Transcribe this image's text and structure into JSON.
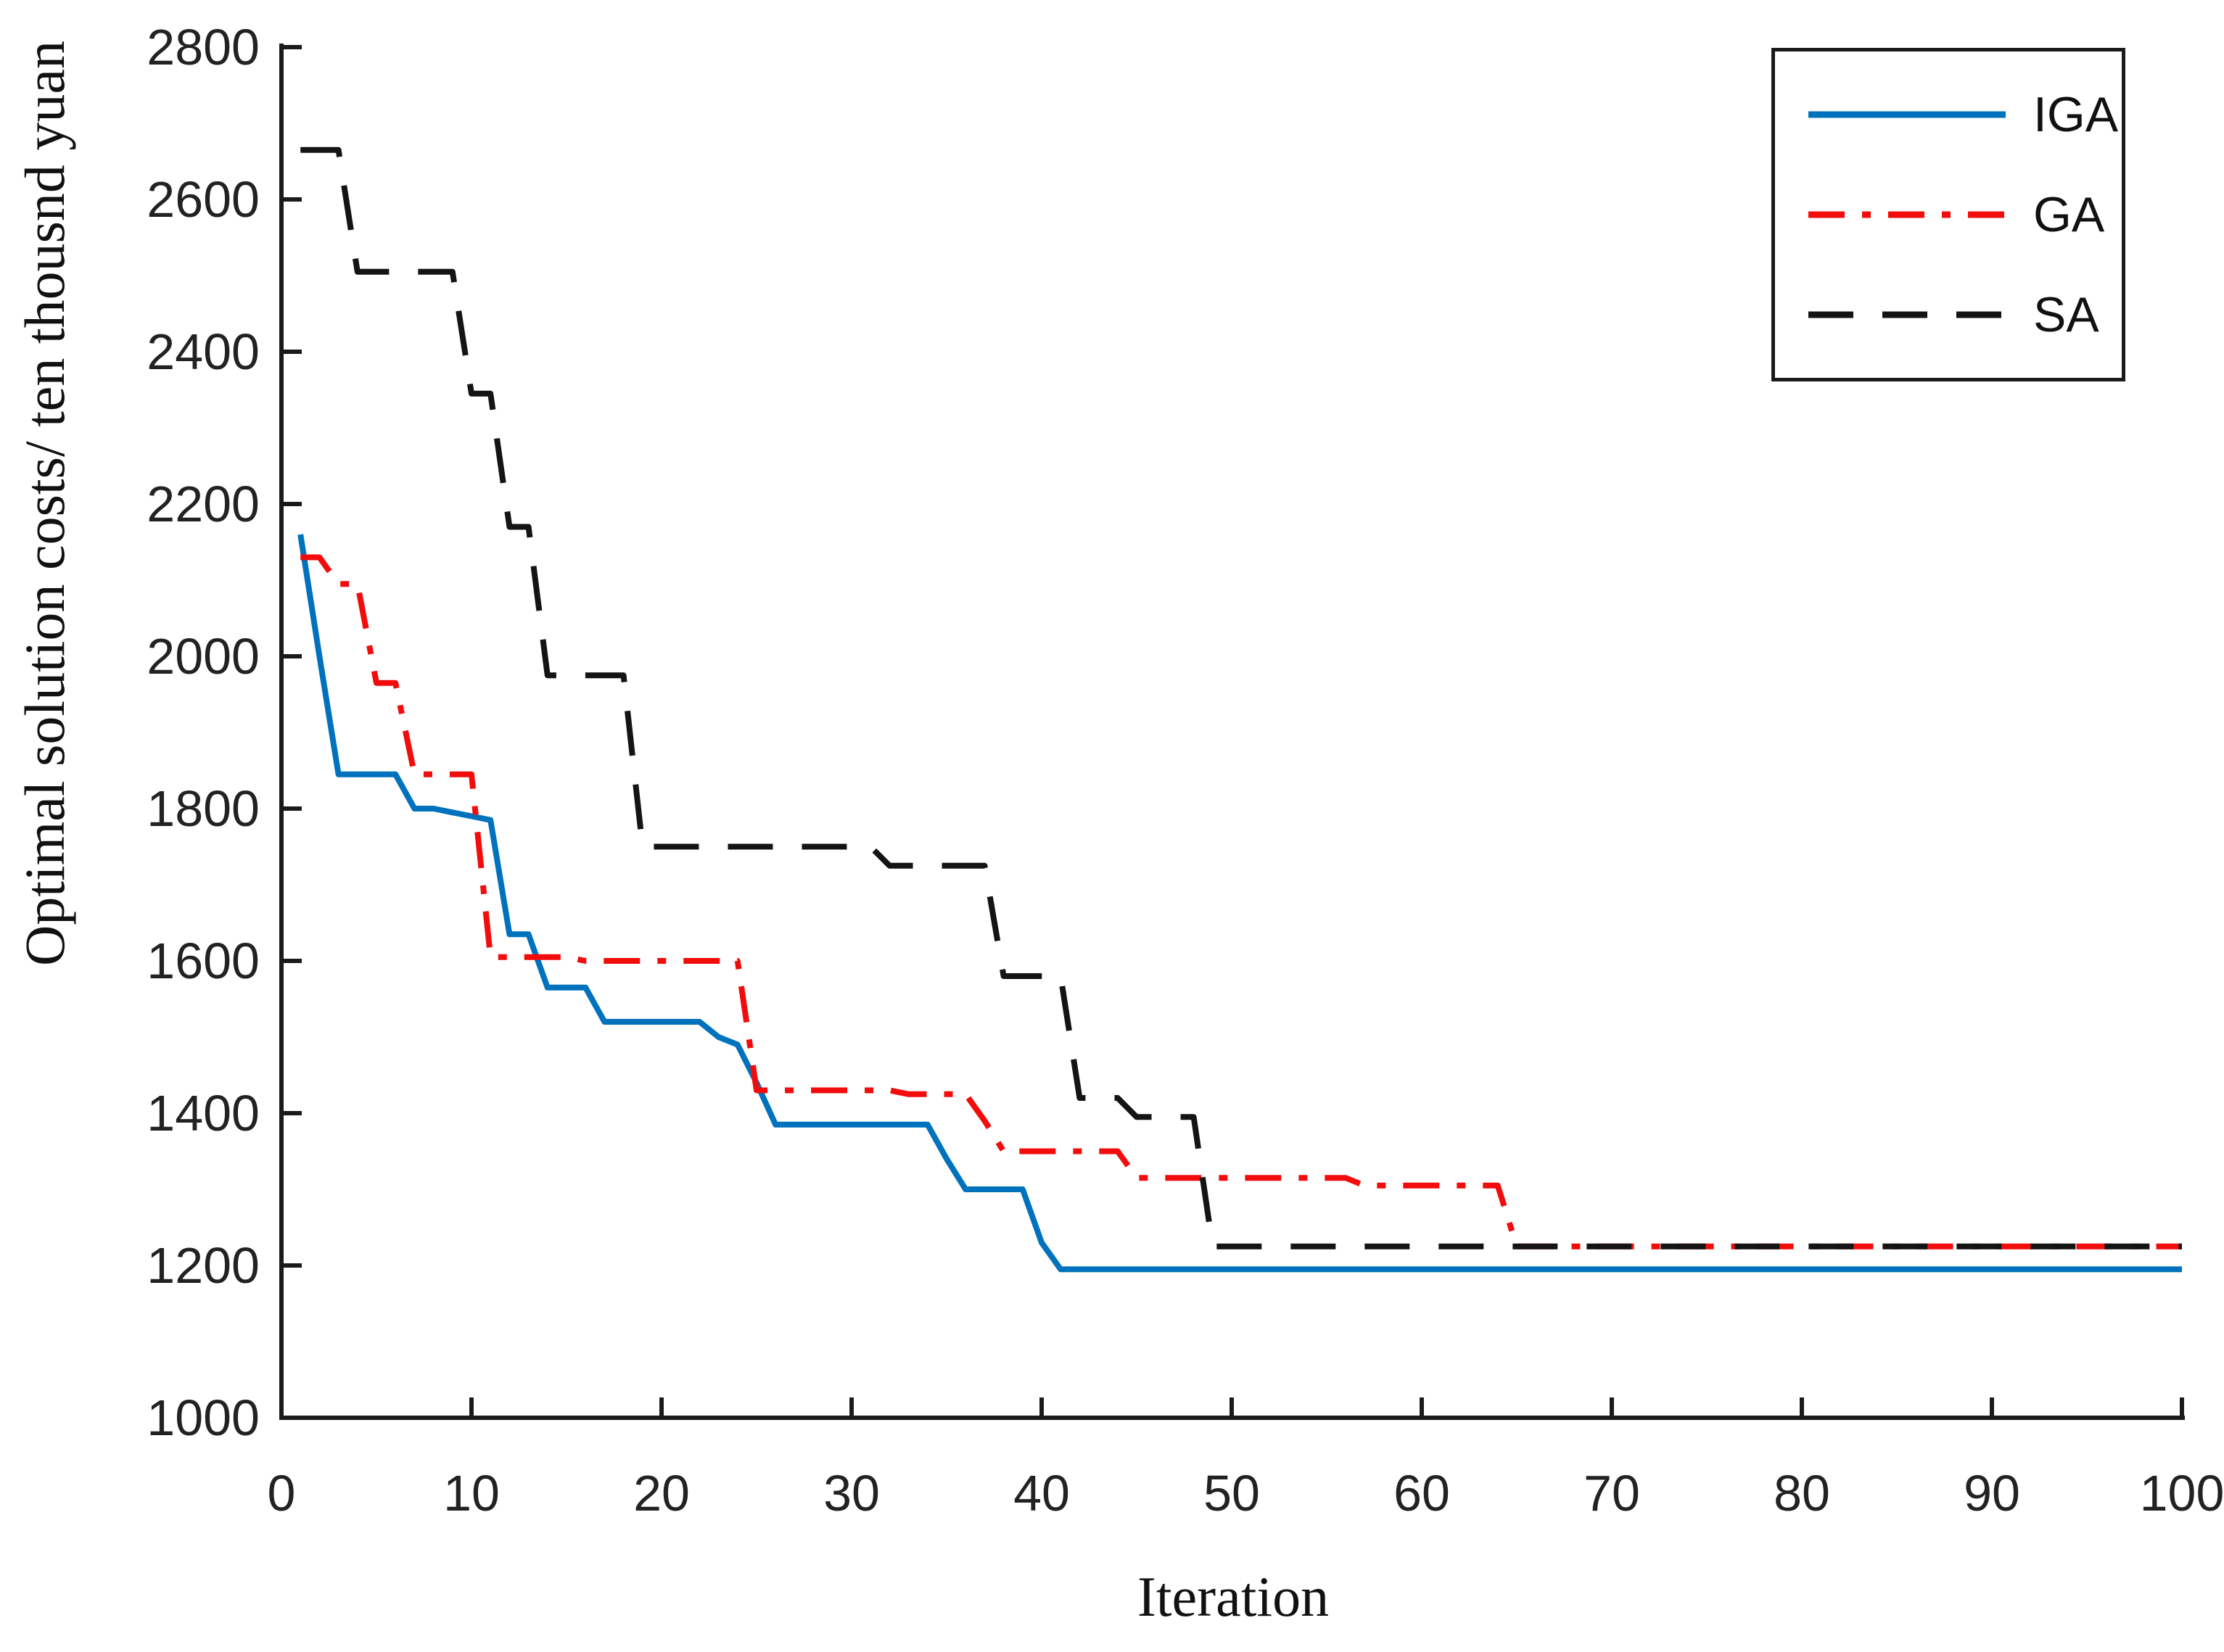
{
  "figure": {
    "background": "#ffffff"
  },
  "chart_data": {
    "type": "line",
    "title": "",
    "xlabel": "Iteration",
    "ylabel": "Optimal solution costs/ ten thousnd yuan",
    "xlim": [
      0,
      100
    ],
    "ylim": [
      1000,
      2800
    ],
    "x_ticks": [
      0,
      10,
      20,
      30,
      40,
      50,
      60,
      70,
      80,
      90,
      100
    ],
    "y_ticks": [
      1000,
      1200,
      1400,
      1600,
      1800,
      2000,
      2200,
      2400,
      2600,
      2800
    ],
    "grid": false,
    "legend_position": "top-right",
    "x_note": "iteration index 1..100, one value per iteration",
    "axis_color": "#1a1a1a",
    "tick_label_color": "#222222",
    "series": [
      {
        "name": "IGA",
        "color": "#0072bd",
        "line_style": "solid",
        "values": [
          2160,
          2000,
          1845,
          1845,
          1845,
          1845,
          1800,
          1800,
          1795,
          1790,
          1785,
          1635,
          1635,
          1565,
          1565,
          1565,
          1520,
          1520,
          1520,
          1520,
          1520,
          1520,
          1500,
          1490,
          1440,
          1385,
          1385,
          1385,
          1385,
          1385,
          1385,
          1385,
          1385,
          1385,
          1340,
          1300,
          1300,
          1300,
          1300,
          1230,
          1195,
          1195,
          1195,
          1195,
          1195,
          1195,
          1195,
          1195,
          1195,
          1195,
          1195,
          1195,
          1195,
          1195,
          1195,
          1195,
          1195,
          1195,
          1195,
          1195,
          1195,
          1195,
          1195,
          1195,
          1195,
          1195,
          1195,
          1195,
          1195,
          1195,
          1195,
          1195,
          1195,
          1195,
          1195,
          1195,
          1195,
          1195,
          1195,
          1195,
          1195,
          1195,
          1195,
          1195,
          1195,
          1195,
          1195,
          1195,
          1195,
          1195,
          1195,
          1195,
          1195,
          1195,
          1195,
          1195,
          1195,
          1195,
          1195,
          1195
        ]
      },
      {
        "name": "GA",
        "color": "#f20c0c",
        "line_style": "dash-dot",
        "values": [
          2130,
          2130,
          2095,
          2095,
          1965,
          1965,
          1845,
          1845,
          1845,
          1845,
          1605,
          1605,
          1605,
          1605,
          1605,
          1600,
          1600,
          1600,
          1600,
          1600,
          1600,
          1600,
          1600,
          1600,
          1430,
          1430,
          1430,
          1430,
          1430,
          1430,
          1430,
          1430,
          1425,
          1425,
          1425,
          1425,
          1390,
          1350,
          1350,
          1350,
          1350,
          1350,
          1350,
          1350,
          1315,
          1315,
          1315,
          1315,
          1315,
          1315,
          1315,
          1315,
          1315,
          1315,
          1315,
          1315,
          1305,
          1305,
          1305,
          1305,
          1305,
          1305,
          1305,
          1305,
          1225,
          1225,
          1225,
          1225,
          1225,
          1225,
          1225,
          1225,
          1225,
          1225,
          1225,
          1225,
          1225,
          1225,
          1225,
          1225,
          1225,
          1225,
          1225,
          1225,
          1225,
          1225,
          1225,
          1225,
          1225,
          1225,
          1225,
          1225,
          1225,
          1225,
          1225,
          1225,
          1225,
          1225,
          1225,
          1225
        ]
      },
      {
        "name": "SA",
        "color": "#141414",
        "line_style": "dashed",
        "values": [
          2665,
          2665,
          2665,
          2505,
          2505,
          2505,
          2505,
          2505,
          2505,
          2345,
          2345,
          2170,
          2170,
          1975,
          1975,
          1975,
          1975,
          1975,
          1750,
          1750,
          1750,
          1750,
          1750,
          1750,
          1750,
          1750,
          1750,
          1750,
          1750,
          1750,
          1750,
          1725,
          1725,
          1725,
          1725,
          1725,
          1725,
          1580,
          1580,
          1580,
          1580,
          1420,
          1420,
          1420,
          1395,
          1395,
          1395,
          1395,
          1225,
          1225,
          1225,
          1225,
          1225,
          1225,
          1225,
          1225,
          1225,
          1225,
          1225,
          1225,
          1225,
          1225,
          1225,
          1225,
          1225,
          1225,
          1225,
          1225,
          1225,
          1225,
          1225,
          1225,
          1225,
          1225,
          1225,
          1225,
          1225,
          1225,
          1225,
          1225,
          1225,
          1225,
          1225,
          1225,
          1225,
          1225,
          1225,
          1225,
          1225,
          1225,
          1225,
          1225,
          1225,
          1225,
          1225,
          1225,
          1225,
          1225,
          1225,
          1225
        ]
      }
    ]
  }
}
